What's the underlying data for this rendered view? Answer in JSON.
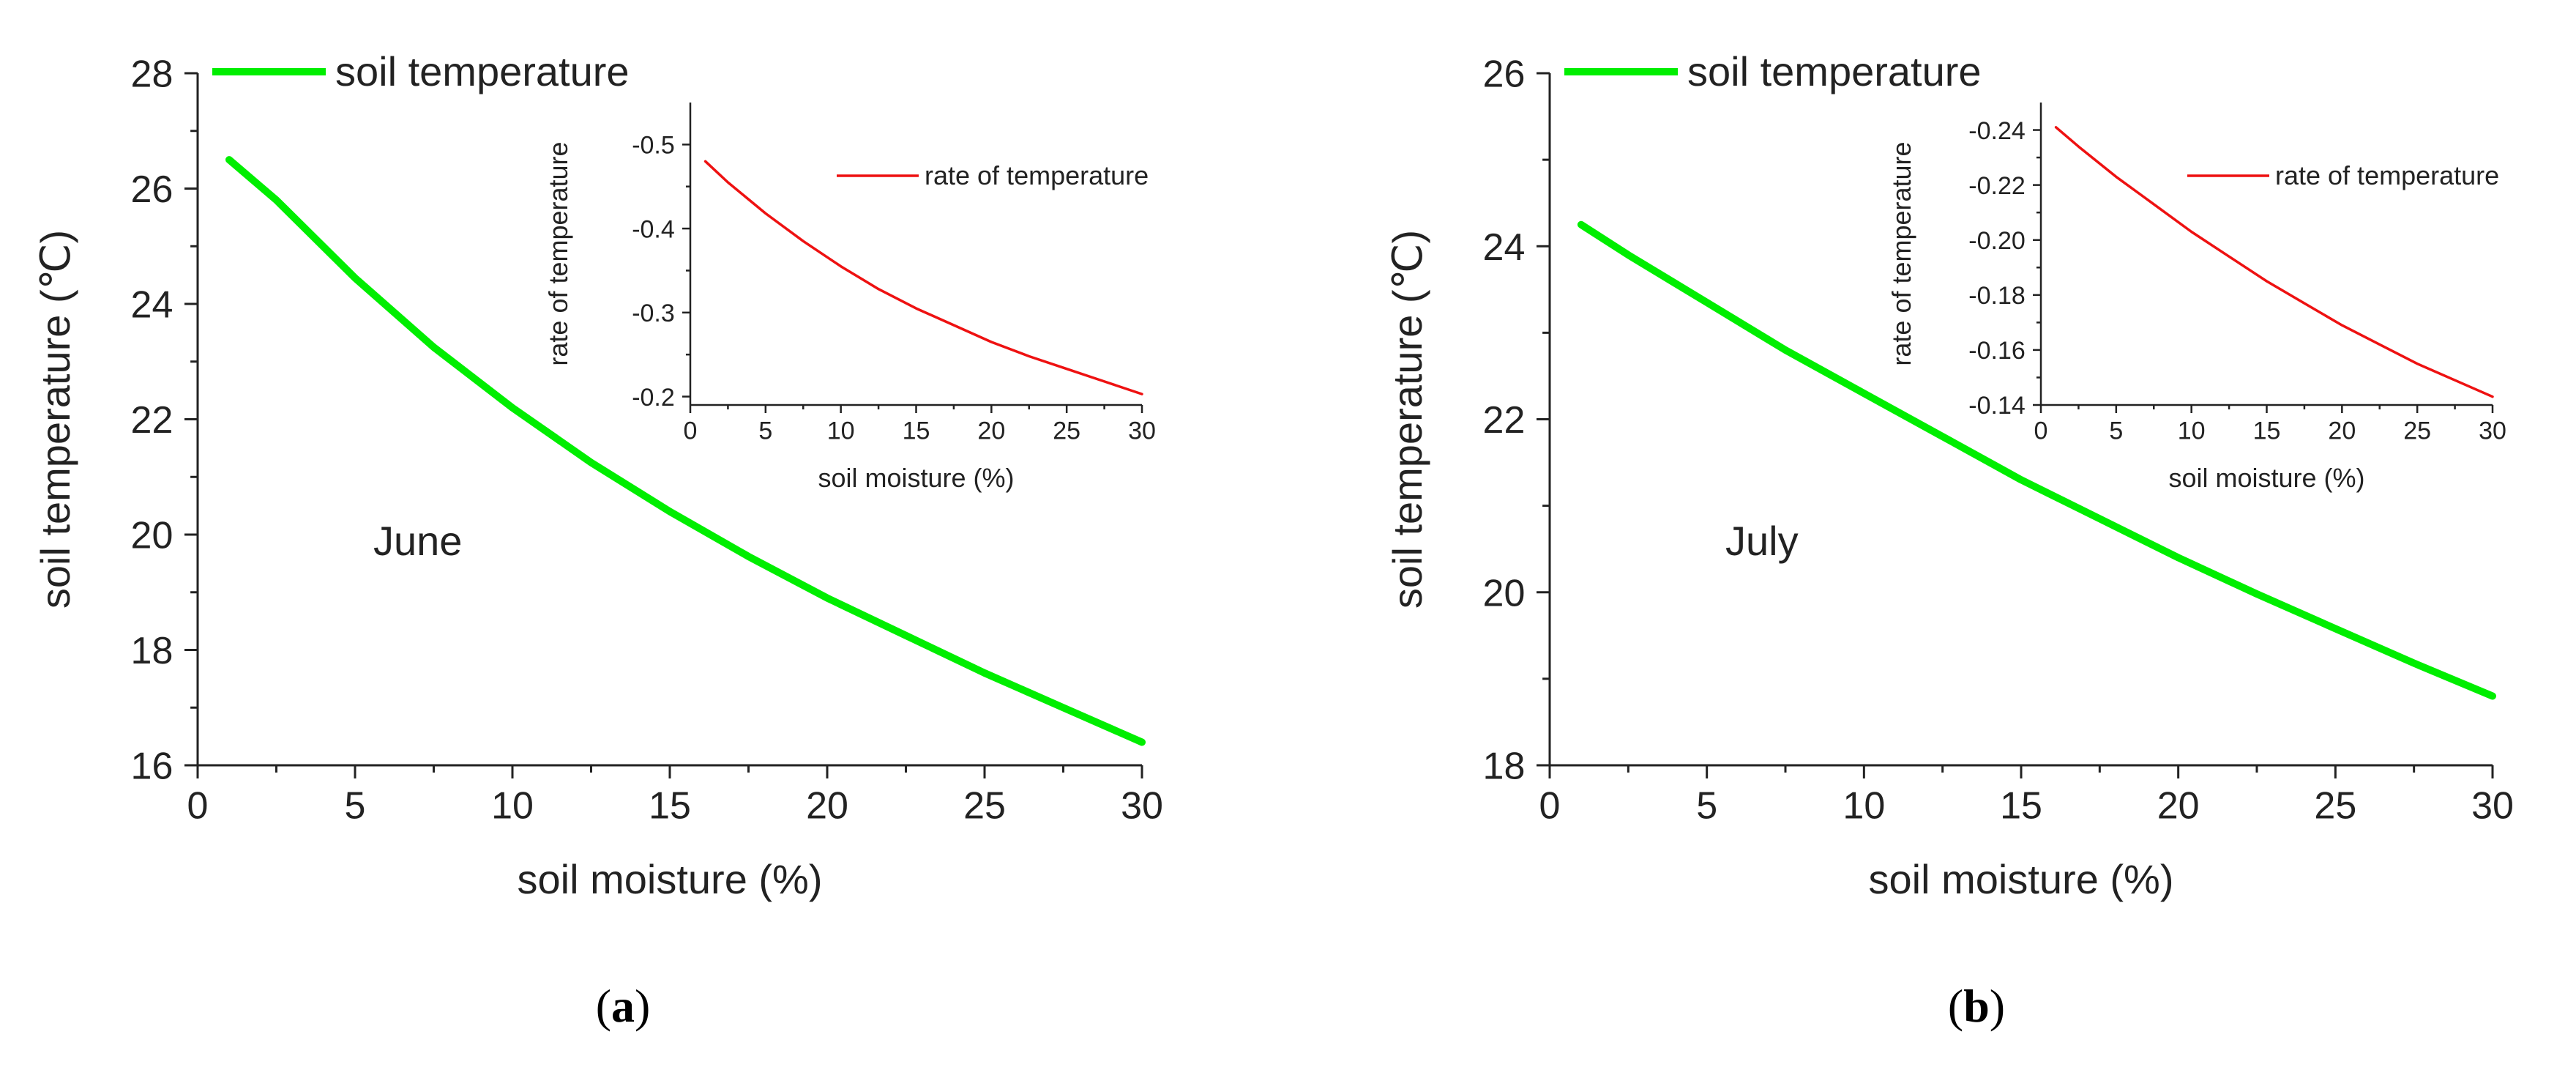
{
  "figure": {
    "panel_labels": [
      {
        "open": "(",
        "letter": "a",
        "close": ")"
      },
      {
        "open": "(",
        "letter": "b",
        "close": ")"
      }
    ]
  },
  "colors": {
    "soil_temperature": "#00ee00",
    "rate_of_temperature": "#ee1111",
    "axis": "#222222"
  },
  "chart_data": [
    {
      "type": "line",
      "panel": "a",
      "annotation": "June",
      "xlabel": "soil moisture (%)",
      "ylabel": "soil temperature (℃)",
      "xlim": [
        0,
        30
      ],
      "ylim": [
        16,
        28
      ],
      "xticks": [
        0,
        5,
        10,
        15,
        20,
        25,
        30
      ],
      "yticks": [
        16,
        18,
        20,
        22,
        24,
        26,
        28
      ],
      "legend": {
        "label": "soil temperature",
        "position": "top-left"
      },
      "series": [
        {
          "name": "soil temperature",
          "color": "#00ee00",
          "x": [
            1,
            2.5,
            5,
            7.5,
            10,
            12.5,
            15,
            17.5,
            20,
            22.5,
            25,
            27.5,
            30
          ],
          "y": [
            26.5,
            25.8,
            24.45,
            23.25,
            22.2,
            21.25,
            20.4,
            19.62,
            18.9,
            18.25,
            17.6,
            17.0,
            16.4
          ]
        }
      ],
      "inset": {
        "type": "line",
        "xlabel": "soil moisture (%)",
        "ylabel": "rate of temperature",
        "xlim": [
          0,
          30
        ],
        "ylim": [
          -0.19,
          -0.55
        ],
        "xticks": [
          0,
          5,
          10,
          15,
          20,
          25,
          30
        ],
        "yticks": [
          -0.5,
          -0.4,
          -0.3,
          -0.2
        ],
        "ytick_labels": [
          "-0.5",
          "-0.4",
          "-0.3",
          "-0.2"
        ],
        "legend": {
          "label": "rate of temperature",
          "position": "top-right"
        },
        "series": [
          {
            "name": "rate of temperature",
            "color": "#ee1111",
            "x": [
              1,
              2.5,
              5,
              7.5,
              10,
              12.5,
              15,
              17.5,
              20,
              22.5,
              25,
              27.5,
              30
            ],
            "y": [
              -0.48,
              -0.455,
              -0.418,
              -0.385,
              -0.355,
              -0.328,
              -0.305,
              -0.285,
              -0.265,
              -0.248,
              -0.233,
              -0.218,
              -0.203
            ]
          }
        ]
      }
    },
    {
      "type": "line",
      "panel": "b",
      "annotation": "July",
      "xlabel": "soil moisture (%)",
      "ylabel": "soil temperature (℃)",
      "xlim": [
        0,
        30
      ],
      "ylim": [
        18,
        26
      ],
      "xticks": [
        0,
        5,
        10,
        15,
        20,
        25,
        30
      ],
      "yticks": [
        18,
        20,
        22,
        24,
        26
      ],
      "legend": {
        "label": "soil temperature",
        "position": "top-left"
      },
      "series": [
        {
          "name": "soil temperature",
          "color": "#00ee00",
          "x": [
            1,
            2.5,
            5,
            7.5,
            10,
            12.5,
            15,
            17.5,
            20,
            22.5,
            25,
            27.5,
            30
          ],
          "y": [
            24.25,
            23.9,
            23.35,
            22.8,
            22.3,
            21.8,
            21.3,
            20.85,
            20.4,
            19.98,
            19.58,
            19.18,
            18.8
          ]
        }
      ],
      "inset": {
        "type": "line",
        "xlabel": "soil moisture (%)",
        "ylabel": "rate of temperature",
        "xlim": [
          0,
          30
        ],
        "ylim": [
          -0.14,
          -0.25
        ],
        "xticks": [
          0,
          5,
          10,
          15,
          20,
          25,
          30
        ],
        "yticks": [
          -0.24,
          -0.22,
          -0.2,
          -0.18,
          -0.16,
          -0.14
        ],
        "ytick_labels": [
          "-0.24",
          "-0.22",
          "-0.20",
          "-0.18",
          "-0.16",
          "-0.14"
        ],
        "legend": {
          "label": "rate of temperature",
          "position": "top-right"
        },
        "series": [
          {
            "name": "rate of temperature",
            "color": "#ee1111",
            "x": [
              1,
              2.5,
              5,
              7.5,
              10,
              12.5,
              15,
              17.5,
              20,
              22.5,
              25,
              27.5,
              30
            ],
            "y": [
              -0.241,
              -0.234,
              -0.223,
              -0.213,
              -0.203,
              -0.194,
              -0.185,
              -0.177,
              -0.169,
              -0.162,
              -0.155,
              -0.149,
              -0.143
            ]
          }
        ]
      }
    }
  ]
}
